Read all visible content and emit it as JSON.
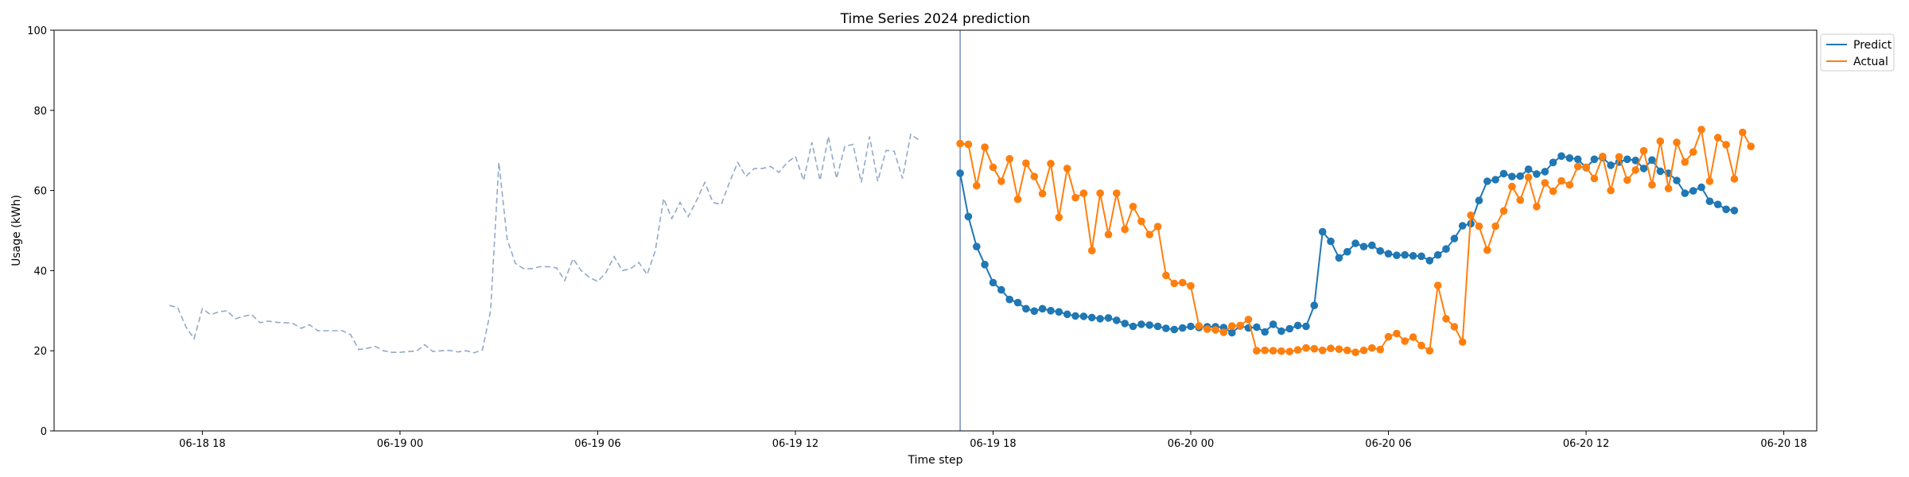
{
  "chart_data": {
    "type": "line",
    "title": "Time Series 2024 prediction",
    "xlabel": "Time step",
    "ylabel": "Usage (kWh)",
    "ylim": [
      0,
      100
    ],
    "yticks": [
      0,
      20,
      40,
      60,
      80,
      100
    ],
    "xlim": [
      "2024-06-18 13:30",
      "2024-06-20 19:00"
    ],
    "xticks": [
      {
        "t": "2024-06-18 18:00",
        "label": "06-18 18"
      },
      {
        "t": "2024-06-19 00:00",
        "label": "06-19 00"
      },
      {
        "t": "2024-06-19 06:00",
        "label": "06-19 06"
      },
      {
        "t": "2024-06-19 12:00",
        "label": "06-19 12"
      },
      {
        "t": "2024-06-19 18:00",
        "label": "06-19 18"
      },
      {
        "t": "2024-06-20 00:00",
        "label": "06-20 00"
      },
      {
        "t": "2024-06-20 06:00",
        "label": "06-20 06"
      },
      {
        "t": "2024-06-20 12:00",
        "label": "06-20 12"
      },
      {
        "t": "2024-06-20 18:00",
        "label": "06-20 18"
      }
    ],
    "split_time": "2024-06-19 17:00",
    "legend_position": "upper right, outside plot",
    "colors": {
      "history": "#91a9c9",
      "predict": "#1f77b4",
      "actual": "#ff7f0e",
      "split": "#4c72b0"
    },
    "history": {
      "start": "2024-06-18 17:00",
      "interval_minutes": 15,
      "values": [
        31.3,
        30.8,
        26,
        23,
        30.5,
        29,
        29.7,
        30,
        28,
        28.6,
        29,
        27,
        27.4,
        27.1,
        27,
        26.8,
        25.6,
        26.5,
        25,
        25,
        25,
        25,
        24,
        20.3,
        20.6,
        21.1,
        20,
        19.6,
        19.6,
        19.8,
        19.9,
        21.5,
        19.8,
        20,
        20.1,
        19.7,
        20,
        19.5,
        20.2,
        30,
        67,
        48,
        41.8,
        40.5,
        40.5,
        41,
        41,
        40.7,
        37.5,
        43,
        40,
        38.3,
        37.3,
        39.5,
        43.5,
        40,
        40.5,
        42,
        39,
        45,
        58,
        53,
        57,
        53.5,
        57.5,
        62,
        57,
        56.5,
        62,
        67,
        63.5,
        65.5,
        65.5,
        66,
        64.5,
        67,
        68.5,
        62.5,
        72,
        62.5,
        73.5,
        63,
        71,
        71.5,
        62,
        73.5,
        62.3,
        70,
        69.8,
        63,
        74,
        72.6
      ]
    },
    "series": [
      {
        "name": "Predict",
        "start": "2024-06-19 17:00",
        "interval_minutes": 15,
        "values": [
          64.3,
          53.5,
          46,
          41.5,
          37,
          35.2,
          32.8,
          32,
          30.5,
          29.9,
          30.5,
          30,
          29.7,
          29.1,
          28.7,
          28.6,
          28.3,
          28,
          28.2,
          27.6,
          26.8,
          26.1,
          26.6,
          26.4,
          26.1,
          25.6,
          25.3,
          25.7,
          26.1,
          25.8,
          26,
          26,
          25.8,
          24.5,
          26.2,
          25.7,
          25.9,
          24.7,
          26.6,
          24.9,
          25.5,
          26.3,
          26.1,
          31.3,
          49.7,
          47.3,
          43.2,
          44.7,
          46.8,
          46,
          46.3,
          44.9,
          44.2,
          43.8,
          43.9,
          43.7,
          43.6,
          42.5,
          43.9,
          45.4,
          48,
          51.2,
          51.7,
          57.5,
          62.3,
          62.7,
          64.2,
          63.5,
          63.6,
          65.3,
          64.1,
          64.7,
          67,
          68.6,
          68.1,
          67.8,
          65.7,
          67.8,
          68.2,
          66.3,
          67.1,
          67.8,
          67.5,
          65.5,
          67.6,
          64.8,
          64.3,
          62.5,
          59.3,
          59.9,
          60.8,
          57.3,
          56.5,
          55.3,
          55
        ]
      },
      {
        "name": "Actual",
        "start": "2024-06-19 17:00",
        "interval_minutes": 15,
        "values": [
          71.7,
          71.5,
          61.2,
          70.8,
          65.8,
          62.3,
          67.9,
          57.8,
          66.8,
          63.5,
          59.2,
          66.7,
          53.3,
          65.5,
          58.2,
          59.3,
          45,
          59.3,
          49,
          59.3,
          50.3,
          56,
          52.3,
          49,
          51,
          38.8,
          36.8,
          37,
          36.2,
          26.2,
          25.4,
          25.2,
          24.6,
          26.2,
          26.3,
          27.8,
          20,
          20.1,
          20,
          19.9,
          19.8,
          20.2,
          20.7,
          20.5,
          20.1,
          20.6,
          20.4,
          20.1,
          19.6,
          20.1,
          20.7,
          20.3,
          23.5,
          24.3,
          22.4,
          23.4,
          21.3,
          20,
          36.3,
          28,
          26,
          22.2,
          53.8,
          51.1,
          45.1,
          51.1,
          54.9,
          61,
          57.6,
          63.3,
          56,
          61.9,
          59.8,
          62.4,
          61.4,
          66,
          65.8,
          63,
          68.5,
          60,
          68.4,
          62.6,
          65.1,
          69.9,
          61.4,
          72.3,
          60.5,
          72,
          67.1,
          69.6,
          75.2,
          62.3,
          73.2,
          71.4,
          62.9,
          74.5,
          71
        ]
      }
    ]
  }
}
